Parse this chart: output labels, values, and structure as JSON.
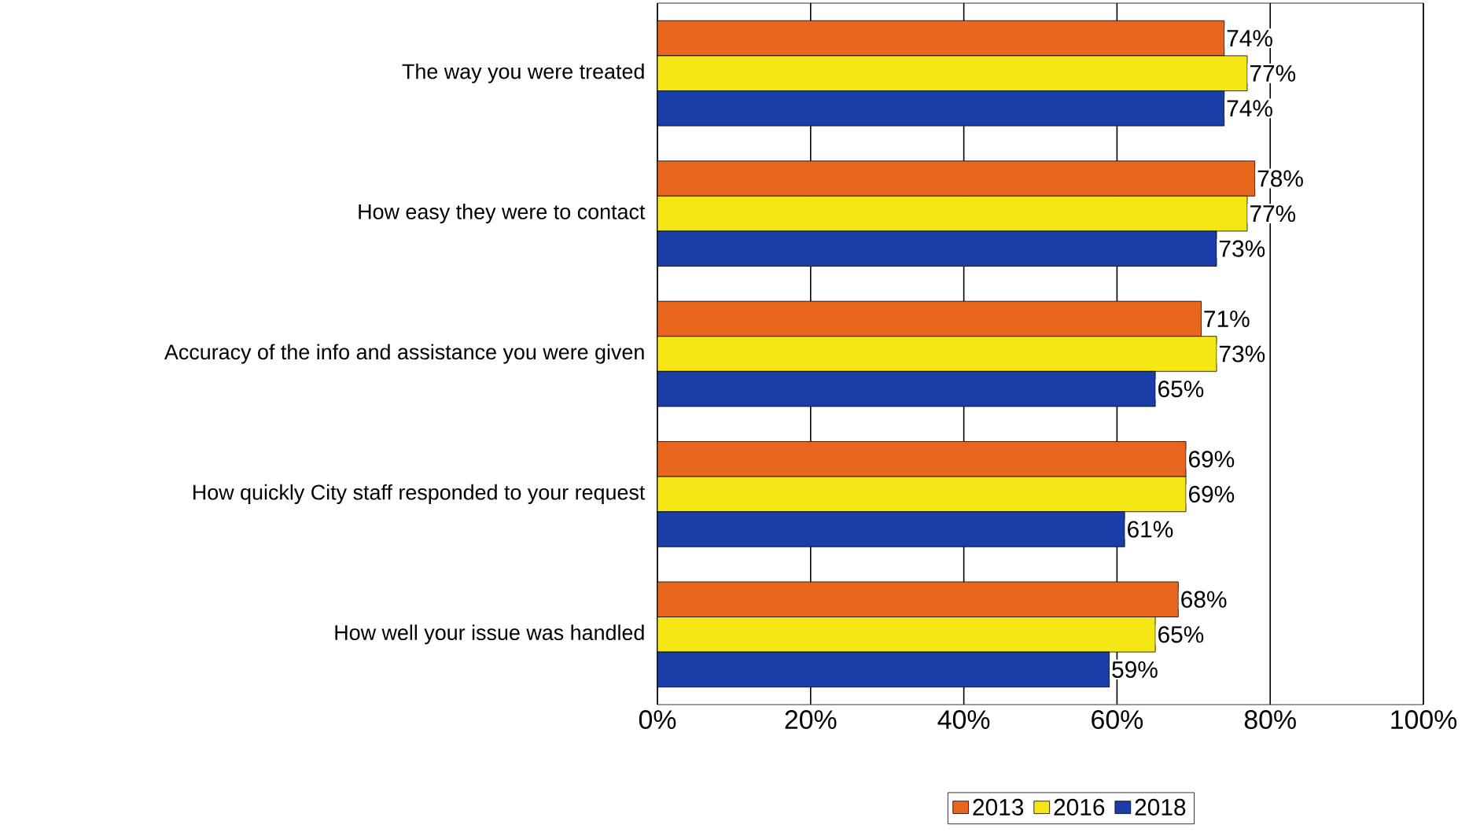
{
  "chart_data": {
    "type": "bar",
    "orientation": "horizontal",
    "categories": [
      "The way you were treated",
      "How easy they were to contact",
      "Accuracy of the info and assistance you were given",
      "How quickly City staff responded to your request",
      "How well your issue was handled"
    ],
    "series": [
      {
        "name": "2013",
        "color": "#e8661e",
        "values": [
          74,
          78,
          71,
          69,
          68
        ],
        "value_labels": [
          "74%",
          "78%",
          "71%",
          "69%",
          "68%"
        ]
      },
      {
        "name": "2016",
        "color": "#f5e616",
        "values": [
          77,
          77,
          73,
          69,
          65
        ],
        "value_labels": [
          "77%",
          "77%",
          "73%",
          "69%",
          "65%"
        ]
      },
      {
        "name": "2018",
        "color": "#1a3ea8",
        "values": [
          74,
          73,
          65,
          61,
          59
        ],
        "value_labels": [
          "74%",
          "73%",
          "65%",
          "61%",
          "59%"
        ]
      }
    ],
    "xlim": [
      0,
      100
    ],
    "xticks": [
      {
        "value": 0,
        "label": "0%"
      },
      {
        "value": 20,
        "label": "20%"
      },
      {
        "value": 40,
        "label": "40%"
      },
      {
        "value": 60,
        "label": "60%"
      },
      {
        "value": 80,
        "label": "80%"
      },
      {
        "value": 100,
        "label": "100%"
      }
    ],
    "grid": "x",
    "legend": "bottom"
  }
}
